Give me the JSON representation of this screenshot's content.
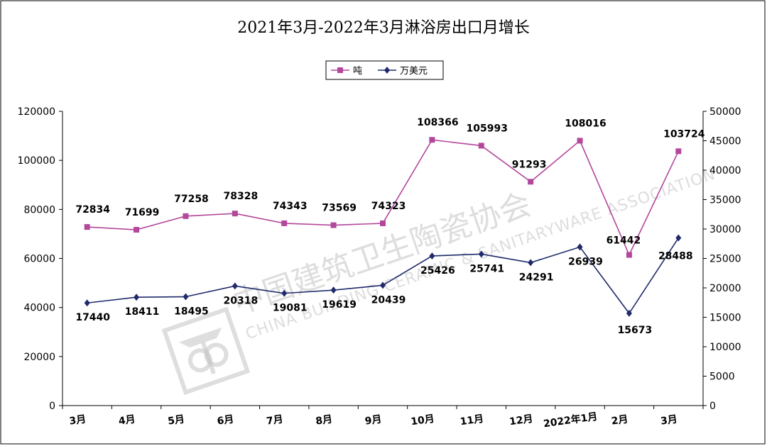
{
  "chart_data": {
    "type": "line",
    "title": "2021年3月-2022年3月淋浴房出口月增长",
    "categories": [
      "3月",
      "4月",
      "5月",
      "6月",
      "7月",
      "8月",
      "9月",
      "10月",
      "11月",
      "12月",
      "2022年1月",
      "2月",
      "3月"
    ],
    "series": [
      {
        "name": "吨",
        "axis": "left",
        "color": "#b3479b",
        "marker": "square",
        "values": [
          72834,
          71699,
          77258,
          78328,
          74343,
          73569,
          74323,
          108366,
          105993,
          91293,
          108016,
          61442,
          103724
        ]
      },
      {
        "name": "万美元",
        "axis": "right",
        "color": "#1f2a6b",
        "marker": "diamond",
        "values": [
          17440,
          18411,
          18495,
          20318,
          19081,
          19619,
          20439,
          25426,
          25741,
          24291,
          26939,
          15673,
          28488
        ]
      }
    ],
    "y_left": {
      "min": 0,
      "max": 120000,
      "ticks": [
        0,
        20000,
        40000,
        60000,
        80000,
        100000,
        120000
      ]
    },
    "y_right": {
      "min": 0,
      "max": 50000,
      "ticks": [
        0,
        5000,
        10000,
        15000,
        20000,
        25000,
        30000,
        35000,
        40000,
        45000,
        50000
      ]
    },
    "legend_position": "top-center",
    "grid": false
  },
  "watermark": {
    "text_cn": "中国建筑卫生陶瓷协会",
    "text_en": "CHINA BUILDING CERAMIC & SANITARYWARE ASSOCIATION"
  }
}
